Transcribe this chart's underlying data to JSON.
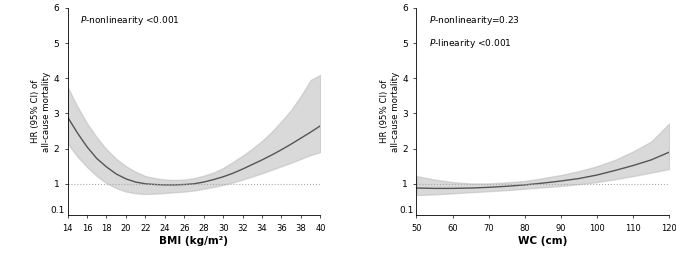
{
  "bmi_x": [
    14,
    15,
    16,
    17,
    18,
    19,
    20,
    21,
    22,
    23,
    24,
    25,
    26,
    27,
    28,
    29,
    30,
    31,
    32,
    33,
    34,
    35,
    36,
    37,
    38,
    39,
    40
  ],
  "bmi_hr": [
    2.9,
    2.45,
    2.05,
    1.72,
    1.48,
    1.28,
    1.14,
    1.05,
    1.0,
    0.98,
    0.97,
    0.97,
    0.98,
    1.0,
    1.05,
    1.12,
    1.2,
    1.3,
    1.42,
    1.55,
    1.68,
    1.82,
    1.97,
    2.13,
    2.3,
    2.47,
    2.65
  ],
  "bmi_lower": [
    2.15,
    1.78,
    1.48,
    1.22,
    1.02,
    0.88,
    0.78,
    0.73,
    0.71,
    0.72,
    0.74,
    0.76,
    0.78,
    0.81,
    0.86,
    0.91,
    0.97,
    1.04,
    1.12,
    1.21,
    1.3,
    1.4,
    1.5,
    1.6,
    1.71,
    1.82,
    1.9
  ],
  "bmi_upper": [
    3.75,
    3.2,
    2.72,
    2.32,
    1.98,
    1.71,
    1.5,
    1.34,
    1.22,
    1.16,
    1.12,
    1.11,
    1.12,
    1.16,
    1.23,
    1.32,
    1.45,
    1.62,
    1.8,
    2.0,
    2.22,
    2.48,
    2.78,
    3.1,
    3.5,
    3.95,
    4.1
  ],
  "bmi_xlim": [
    14,
    40
  ],
  "bmi_xticks": [
    14,
    16,
    18,
    20,
    22,
    24,
    26,
    28,
    30,
    32,
    34,
    36,
    38,
    40
  ],
  "bmi_xlabel": "BMI (kg/m²)",
  "bmi_annot": "P-nonlinearity <0.001",
  "wc_x": [
    50,
    55,
    60,
    65,
    70,
    75,
    80,
    85,
    90,
    95,
    100,
    105,
    110,
    115,
    120
  ],
  "wc_hr": [
    0.88,
    0.87,
    0.87,
    0.88,
    0.9,
    0.93,
    0.97,
    1.02,
    1.08,
    1.15,
    1.25,
    1.38,
    1.52,
    1.68,
    1.9
  ],
  "wc_lower": [
    0.68,
    0.7,
    0.73,
    0.76,
    0.79,
    0.82,
    0.86,
    0.9,
    0.94,
    0.99,
    1.05,
    1.13,
    1.22,
    1.32,
    1.42
  ],
  "wc_upper": [
    1.22,
    1.12,
    1.05,
    1.01,
    1.01,
    1.04,
    1.08,
    1.16,
    1.25,
    1.36,
    1.5,
    1.68,
    1.92,
    2.2,
    2.72
  ],
  "wc_xlim": [
    50,
    120
  ],
  "wc_xticks": [
    50,
    60,
    70,
    80,
    90,
    100,
    110,
    120
  ],
  "wc_xlabel": "WC (cm)",
  "wc_annot1": "P-nonlinearity=0.23",
  "wc_annot2": "P-linearity <0.001",
  "ylabel": "HR (95% CI) of\nall-cause mortality",
  "ymin": 0.1,
  "ymax": 6.0,
  "yticks_linear": [
    1,
    2,
    3,
    4,
    5,
    6
  ],
  "ytick_labels_linear": [
    "1",
    "2",
    "3",
    "4",
    "5",
    "6"
  ],
  "y_bottom_label": "0.1",
  "ref_line": 1.0,
  "line_color": "#555555",
  "fill_color": "#bbbbbb",
  "fill_alpha": 0.55,
  "dotted_color": "#aaaaaa"
}
